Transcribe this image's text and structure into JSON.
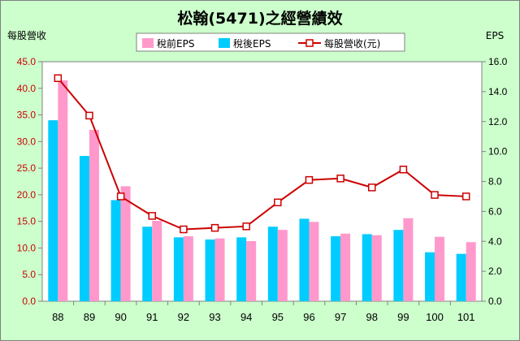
{
  "chart_data": {
    "type": "bar",
    "title": "松翰(5471)之經營績效",
    "ylabel_left": "每股營收",
    "ylabel_right": "EPS",
    "categories": [
      "88",
      "89",
      "90",
      "91",
      "92",
      "93",
      "94",
      "95",
      "96",
      "97",
      "98",
      "99",
      "100",
      "101"
    ],
    "ylim_left": [
      0,
      45
    ],
    "yticks_left": [
      "0.0",
      "5.0",
      "10.0",
      "15.0",
      "20.0",
      "25.0",
      "30.0",
      "35.0",
      "40.0",
      "45.0"
    ],
    "ylim_right": [
      0,
      16
    ],
    "yticks_right": [
      "0.0",
      "2.0",
      "4.0",
      "6.0",
      "8.0",
      "10.0",
      "12.0",
      "14.0",
      "16.0"
    ],
    "legend_position": "top",
    "series": [
      {
        "name": "稅前EPS",
        "axis": "left",
        "kind": "bar",
        "color": "#ff99cc",
        "values": [
          41.5,
          32.2,
          21.6,
          15.1,
          12.2,
          11.8,
          11.3,
          13.4,
          14.9,
          12.7,
          12.4,
          15.6,
          12.1,
          11.1
        ]
      },
      {
        "name": "稅後EPS",
        "axis": "left",
        "kind": "bar",
        "color": "#00ccff",
        "values": [
          34.0,
          27.3,
          19.0,
          14.0,
          12.0,
          11.6,
          12.0,
          14.0,
          15.5,
          12.2,
          12.6,
          13.4,
          9.2,
          8.9
        ]
      },
      {
        "name": "每股營收(元)",
        "axis": "right",
        "kind": "line",
        "color": "#cc0000",
        "values": [
          14.9,
          12.4,
          7.0,
          5.7,
          4.8,
          4.9,
          5.0,
          6.6,
          8.1,
          8.2,
          7.6,
          8.8,
          7.1,
          7.0
        ]
      }
    ],
    "grid": false
  }
}
